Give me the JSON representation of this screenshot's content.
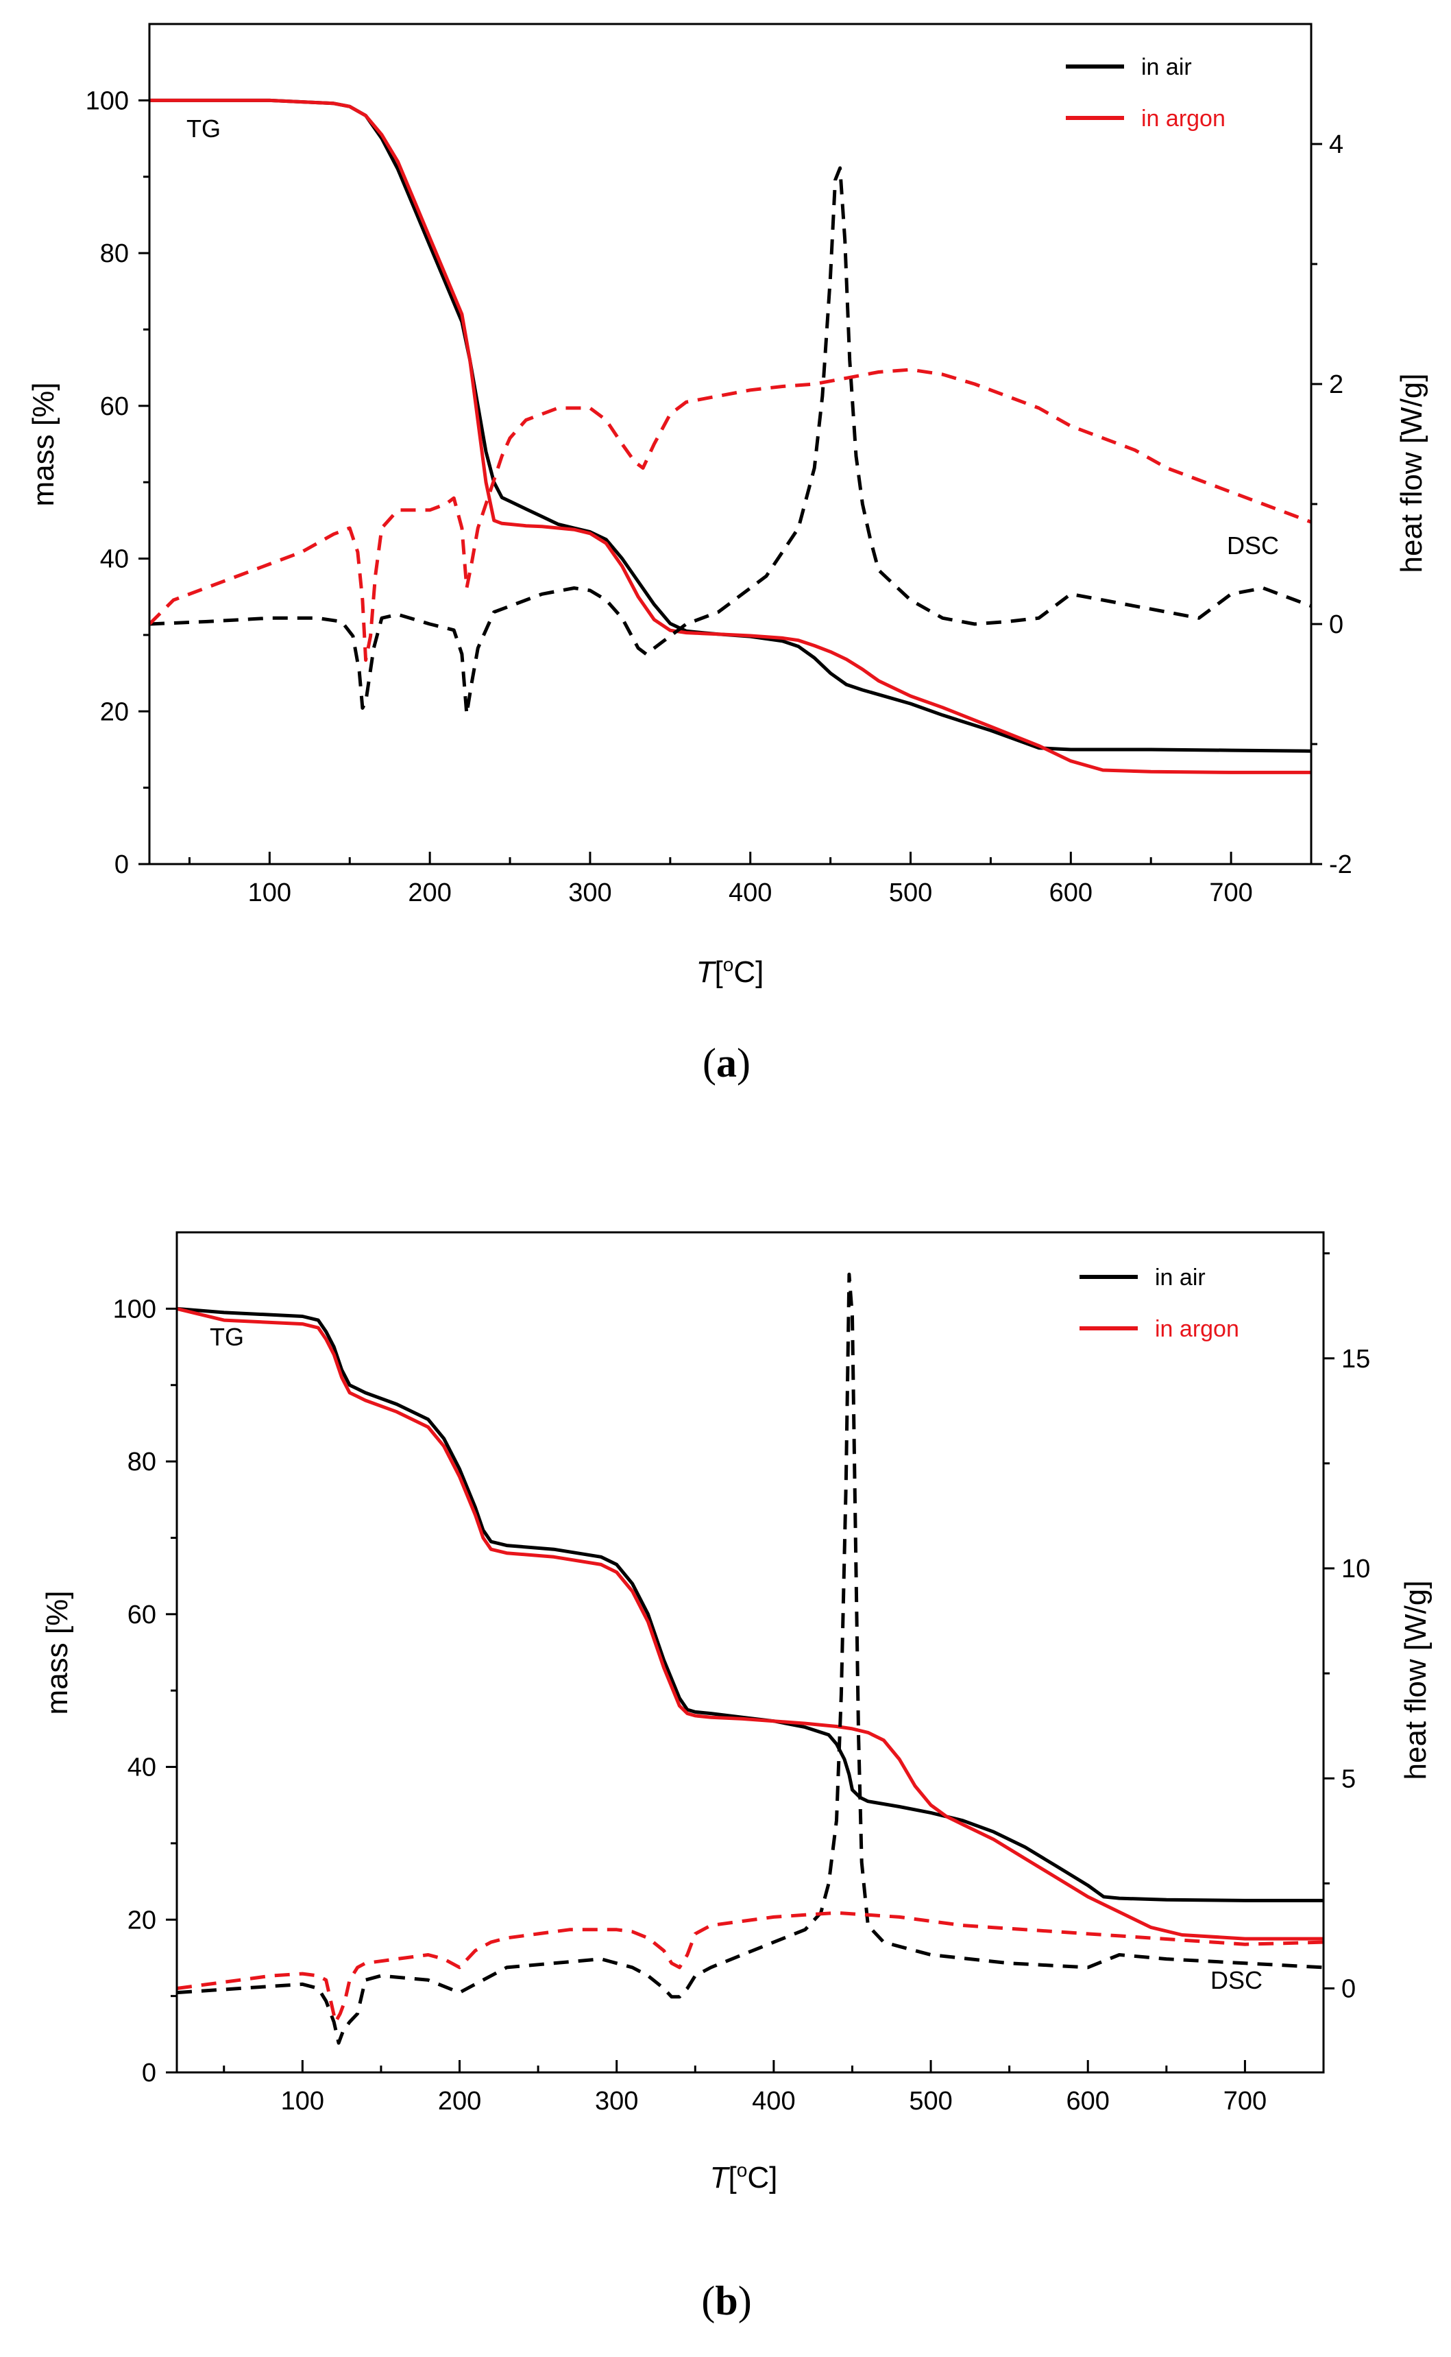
{
  "chart_data": [
    {
      "type": "line",
      "panel_label": "(a)",
      "panel_letter": "a",
      "xlabel": "T",
      "xlabel_unit": "[oC]",
      "ylabel": "mass [%]",
      "ylabel_right": "heat flow [W/g]",
      "xlim": [
        25,
        750
      ],
      "ylim": [
        0,
        110
      ],
      "ylim_right": [
        -2,
        5
      ],
      "xticks": [
        100,
        200,
        300,
        400,
        500,
        600,
        700
      ],
      "yticks": [
        0,
        20,
        40,
        60,
        80,
        100
      ],
      "yticks_right": [
        -2,
        0,
        2,
        4
      ],
      "legend": [
        "in air",
        "in argon"
      ],
      "legend_position": "top-right",
      "annotations": {
        "tg": "TG",
        "dsc": "DSC"
      },
      "colors": {
        "air": "#000000",
        "argon": "#e8151b"
      },
      "series": [
        {
          "name": "TG in air",
          "axis": "left",
          "style": "solid",
          "color_key": "air",
          "x": [
            25,
            100,
            140,
            150,
            160,
            170,
            180,
            190,
            200,
            210,
            220,
            225,
            230,
            235,
            240,
            245,
            250,
            260,
            270,
            280,
            290,
            300,
            310,
            320,
            330,
            340,
            350,
            360,
            370,
            380,
            400,
            420,
            430,
            440,
            450,
            460,
            470,
            500,
            520,
            550,
            580,
            600,
            650,
            700,
            750
          ],
          "y": [
            100,
            100,
            99.6,
            99.2,
            98,
            95,
            91,
            86,
            81,
            76,
            71,
            66,
            60,
            54,
            50,
            48,
            47.5,
            46.5,
            45.5,
            44.5,
            44,
            43.5,
            42.5,
            40,
            37,
            34,
            31.5,
            30.5,
            30.3,
            30.1,
            29.8,
            29.2,
            28.5,
            27,
            25,
            23.5,
            22.8,
            21,
            19.5,
            17.5,
            15.2,
            15,
            15,
            14.9,
            14.8
          ]
        },
        {
          "name": "TG in argon",
          "axis": "left",
          "style": "solid",
          "color_key": "argon",
          "x": [
            25,
            100,
            140,
            150,
            160,
            170,
            180,
            190,
            200,
            210,
            220,
            225,
            230,
            235,
            240,
            245,
            250,
            260,
            270,
            280,
            290,
            300,
            310,
            320,
            330,
            340,
            350,
            360,
            370,
            380,
            400,
            420,
            430,
            440,
            450,
            460,
            470,
            480,
            500,
            520,
            550,
            580,
            600,
            620,
            650,
            700,
            750
          ],
          "y": [
            100,
            100,
            99.6,
            99.2,
            98,
            95.5,
            92,
            87,
            82,
            77,
            72,
            66,
            58,
            50,
            45,
            44.6,
            44.5,
            44.3,
            44.2,
            44,
            43.8,
            43.3,
            42,
            39,
            35,
            32,
            30.6,
            30.3,
            30.2,
            30.1,
            29.9,
            29.6,
            29.3,
            28.6,
            27.8,
            26.8,
            25.5,
            24,
            22,
            20.5,
            18,
            15.5,
            13.5,
            12.3,
            12.1,
            12,
            12
          ]
        },
        {
          "name": "DSC in air",
          "axis": "right",
          "style": "dashed",
          "color_key": "air",
          "x": [
            25,
            60,
            100,
            130,
            145,
            152,
            156,
            158,
            160,
            165,
            170,
            180,
            200,
            215,
            220,
            223,
            226,
            230,
            240,
            250,
            260,
            270,
            290,
            300,
            310,
            320,
            330,
            335,
            345,
            360,
            380,
            400,
            410,
            420,
            430,
            440,
            445,
            450,
            453,
            456,
            459,
            462,
            466,
            470,
            475,
            480,
            500,
            520,
            540,
            560,
            580,
            600,
            620,
            640,
            660,
            680,
            700,
            720,
            740,
            750
          ],
          "y": [
            0,
            0.02,
            0.05,
            0.05,
            0.02,
            -0.1,
            -0.4,
            -0.7,
            -0.65,
            -0.2,
            0.05,
            0.08,
            0.0,
            -0.05,
            -0.25,
            -0.75,
            -0.5,
            -0.2,
            0.1,
            0.15,
            0.2,
            0.25,
            0.3,
            0.28,
            0.2,
            0.05,
            -0.2,
            -0.25,
            -0.15,
            0.0,
            0.1,
            0.3,
            0.4,
            0.6,
            0.8,
            1.3,
            1.9,
            2.9,
            3.7,
            3.8,
            3.2,
            2.2,
            1.4,
            1.0,
            0.7,
            0.45,
            0.2,
            0.05,
            0.0,
            0.02,
            0.05,
            0.25,
            0.2,
            0.15,
            0.1,
            0.05,
            0.25,
            0.3,
            0.2,
            0.15
          ]
        },
        {
          "name": "DSC in argon",
          "axis": "right",
          "style": "dashed",
          "color_key": "argon",
          "x": [
            25,
            40,
            60,
            80,
            100,
            120,
            140,
            150,
            155,
            158,
            160,
            163,
            166,
            170,
            180,
            200,
            210,
            215,
            220,
            223,
            226,
            230,
            235,
            240,
            245,
            250,
            260,
            280,
            300,
            310,
            320,
            328,
            333,
            340,
            350,
            360,
            380,
            400,
            420,
            440,
            460,
            480,
            500,
            520,
            540,
            560,
            580,
            600,
            620,
            640,
            660,
            680,
            700,
            720,
            740,
            750
          ],
          "y": [
            0,
            0.2,
            0.3,
            0.4,
            0.5,
            0.6,
            0.75,
            0.8,
            0.6,
            0.2,
            -0.3,
            -0.1,
            0.4,
            0.8,
            0.95,
            0.95,
            1.0,
            1.05,
            0.8,
            0.3,
            0.5,
            0.8,
            1.0,
            1.2,
            1.4,
            1.55,
            1.7,
            1.8,
            1.8,
            1.7,
            1.5,
            1.35,
            1.3,
            1.5,
            1.75,
            1.85,
            1.9,
            1.95,
            1.98,
            2.0,
            2.05,
            2.1,
            2.12,
            2.08,
            2.0,
            1.9,
            1.8,
            1.65,
            1.55,
            1.45,
            1.3,
            1.2,
            1.1,
            1.0,
            0.9,
            0.85
          ]
        }
      ]
    },
    {
      "type": "line",
      "panel_label": "(b)",
      "panel_letter": "b",
      "xlabel": "T",
      "xlabel_unit": "[oC]",
      "ylabel": "mass [%]",
      "ylabel_right": "heat flow [W/g]",
      "xlim": [
        20,
        750
      ],
      "ylim": [
        0,
        110
      ],
      "ylim_right": [
        -2,
        18
      ],
      "xticks": [
        100,
        200,
        300,
        400,
        500,
        600,
        700
      ],
      "yticks": [
        0,
        20,
        40,
        60,
        80,
        100
      ],
      "yticks_right": [
        0,
        5,
        10,
        15
      ],
      "legend": [
        "in air",
        "in argon"
      ],
      "legend_position": "top-right",
      "annotations": {
        "tg": "TG",
        "dsc": "DSC"
      },
      "colors": {
        "air": "#000000",
        "argon": "#e8151b"
      },
      "series": [
        {
          "name": "TG in air",
          "axis": "left",
          "style": "solid",
          "color_key": "air",
          "x": [
            20,
            50,
            100,
            110,
            115,
            120,
            125,
            130,
            135,
            140,
            160,
            180,
            190,
            200,
            210,
            215,
            220,
            230,
            260,
            290,
            300,
            310,
            320,
            330,
            340,
            345,
            350,
            360,
            380,
            400,
            420,
            435,
            440,
            445,
            448,
            450,
            455,
            460,
            480,
            500,
            520,
            540,
            560,
            580,
            600,
            610,
            620,
            650,
            700,
            750
          ],
          "y": [
            100,
            99.5,
            99,
            98.5,
            97,
            95,
            92,
            90,
            89.5,
            89,
            87.5,
            85.5,
            83,
            79,
            74,
            71,
            69.5,
            69,
            68.5,
            67.5,
            66.5,
            64,
            60,
            54,
            49,
            47.5,
            47.2,
            47,
            46.5,
            46,
            45.2,
            44.2,
            43,
            41,
            39,
            37,
            36,
            35.5,
            34.8,
            34,
            33,
            31.5,
            29.5,
            27,
            24.5,
            23,
            22.8,
            22.6,
            22.5,
            22.5
          ]
        },
        {
          "name": "TG in argon",
          "axis": "left",
          "style": "solid",
          "color_key": "argon",
          "x": [
            20,
            50,
            100,
            110,
            115,
            120,
            125,
            130,
            135,
            140,
            160,
            180,
            190,
            200,
            210,
            215,
            220,
            230,
            260,
            290,
            300,
            310,
            320,
            330,
            340,
            345,
            350,
            360,
            380,
            400,
            420,
            440,
            450,
            460,
            470,
            480,
            490,
            500,
            510,
            520,
            540,
            560,
            580,
            600,
            620,
            640,
            660,
            700,
            750
          ],
          "y": [
            100,
            98.5,
            98,
            97.5,
            96,
            94,
            91,
            89,
            88.5,
            88,
            86.5,
            84.5,
            82,
            78,
            73,
            70,
            68.5,
            68,
            67.5,
            66.5,
            65.5,
            63,
            59,
            53,
            48,
            47,
            46.7,
            46.5,
            46.3,
            46,
            45.7,
            45.3,
            45,
            44.5,
            43.5,
            41,
            37.5,
            35,
            33.5,
            32.5,
            30.5,
            28,
            25.5,
            23,
            21,
            19,
            18,
            17.5,
            17.5
          ]
        },
        {
          "name": "DSC in air",
          "axis": "right",
          "style": "dashed",
          "color_key": "air",
          "x": [
            20,
            60,
            100,
            110,
            115,
            120,
            123,
            126,
            130,
            135,
            140,
            150,
            180,
            200,
            210,
            230,
            260,
            290,
            300,
            310,
            320,
            330,
            335,
            340,
            345,
            350,
            360,
            380,
            400,
            420,
            430,
            435,
            440,
            443,
            446,
            448,
            450,
            452,
            454,
            456,
            460,
            470,
            480,
            500,
            550,
            600,
            620,
            650,
            700,
            750
          ],
          "y": [
            -0.1,
            0,
            0.1,
            0,
            -0.3,
            -0.8,
            -1.3,
            -1.0,
            -0.8,
            -0.6,
            0.2,
            0.3,
            0.2,
            -0.1,
            0.1,
            0.5,
            0.6,
            0.7,
            0.6,
            0.5,
            0.3,
            0,
            -0.2,
            -0.2,
            0.0,
            0.3,
            0.5,
            0.8,
            1.1,
            1.4,
            1.8,
            2.5,
            4.0,
            7.0,
            12.0,
            17.0,
            16.0,
            11.0,
            6.0,
            3.0,
            1.5,
            1.1,
            1.0,
            0.8,
            0.6,
            0.5,
            0.8,
            0.7,
            0.6,
            0.5
          ]
        },
        {
          "name": "DSC in argon",
          "axis": "right",
          "style": "dashed",
          "color_key": "argon",
          "x": [
            20,
            40,
            60,
            80,
            100,
            110,
            115,
            118,
            121,
            124,
            127,
            130,
            135,
            140,
            160,
            180,
            190,
            200,
            210,
            220,
            230,
            250,
            270,
            290,
            300,
            310,
            320,
            330,
            335,
            340,
            345,
            350,
            360,
            380,
            400,
            420,
            440,
            460,
            480,
            500,
            520,
            540,
            560,
            580,
            600,
            620,
            640,
            660,
            680,
            700,
            750
          ],
          "y": [
            0,
            0.1,
            0.2,
            0.3,
            0.35,
            0.3,
            0.2,
            -0.3,
            -0.8,
            -0.6,
            -0.3,
            0.2,
            0.5,
            0.6,
            0.7,
            0.8,
            0.7,
            0.5,
            0.9,
            1.1,
            1.2,
            1.3,
            1.4,
            1.4,
            1.4,
            1.35,
            1.2,
            0.9,
            0.6,
            0.5,
            0.8,
            1.3,
            1.5,
            1.6,
            1.7,
            1.75,
            1.8,
            1.75,
            1.7,
            1.6,
            1.5,
            1.45,
            1.4,
            1.35,
            1.3,
            1.25,
            1.2,
            1.15,
            1.1,
            1.05,
            1.1
          ]
        }
      ]
    }
  ]
}
